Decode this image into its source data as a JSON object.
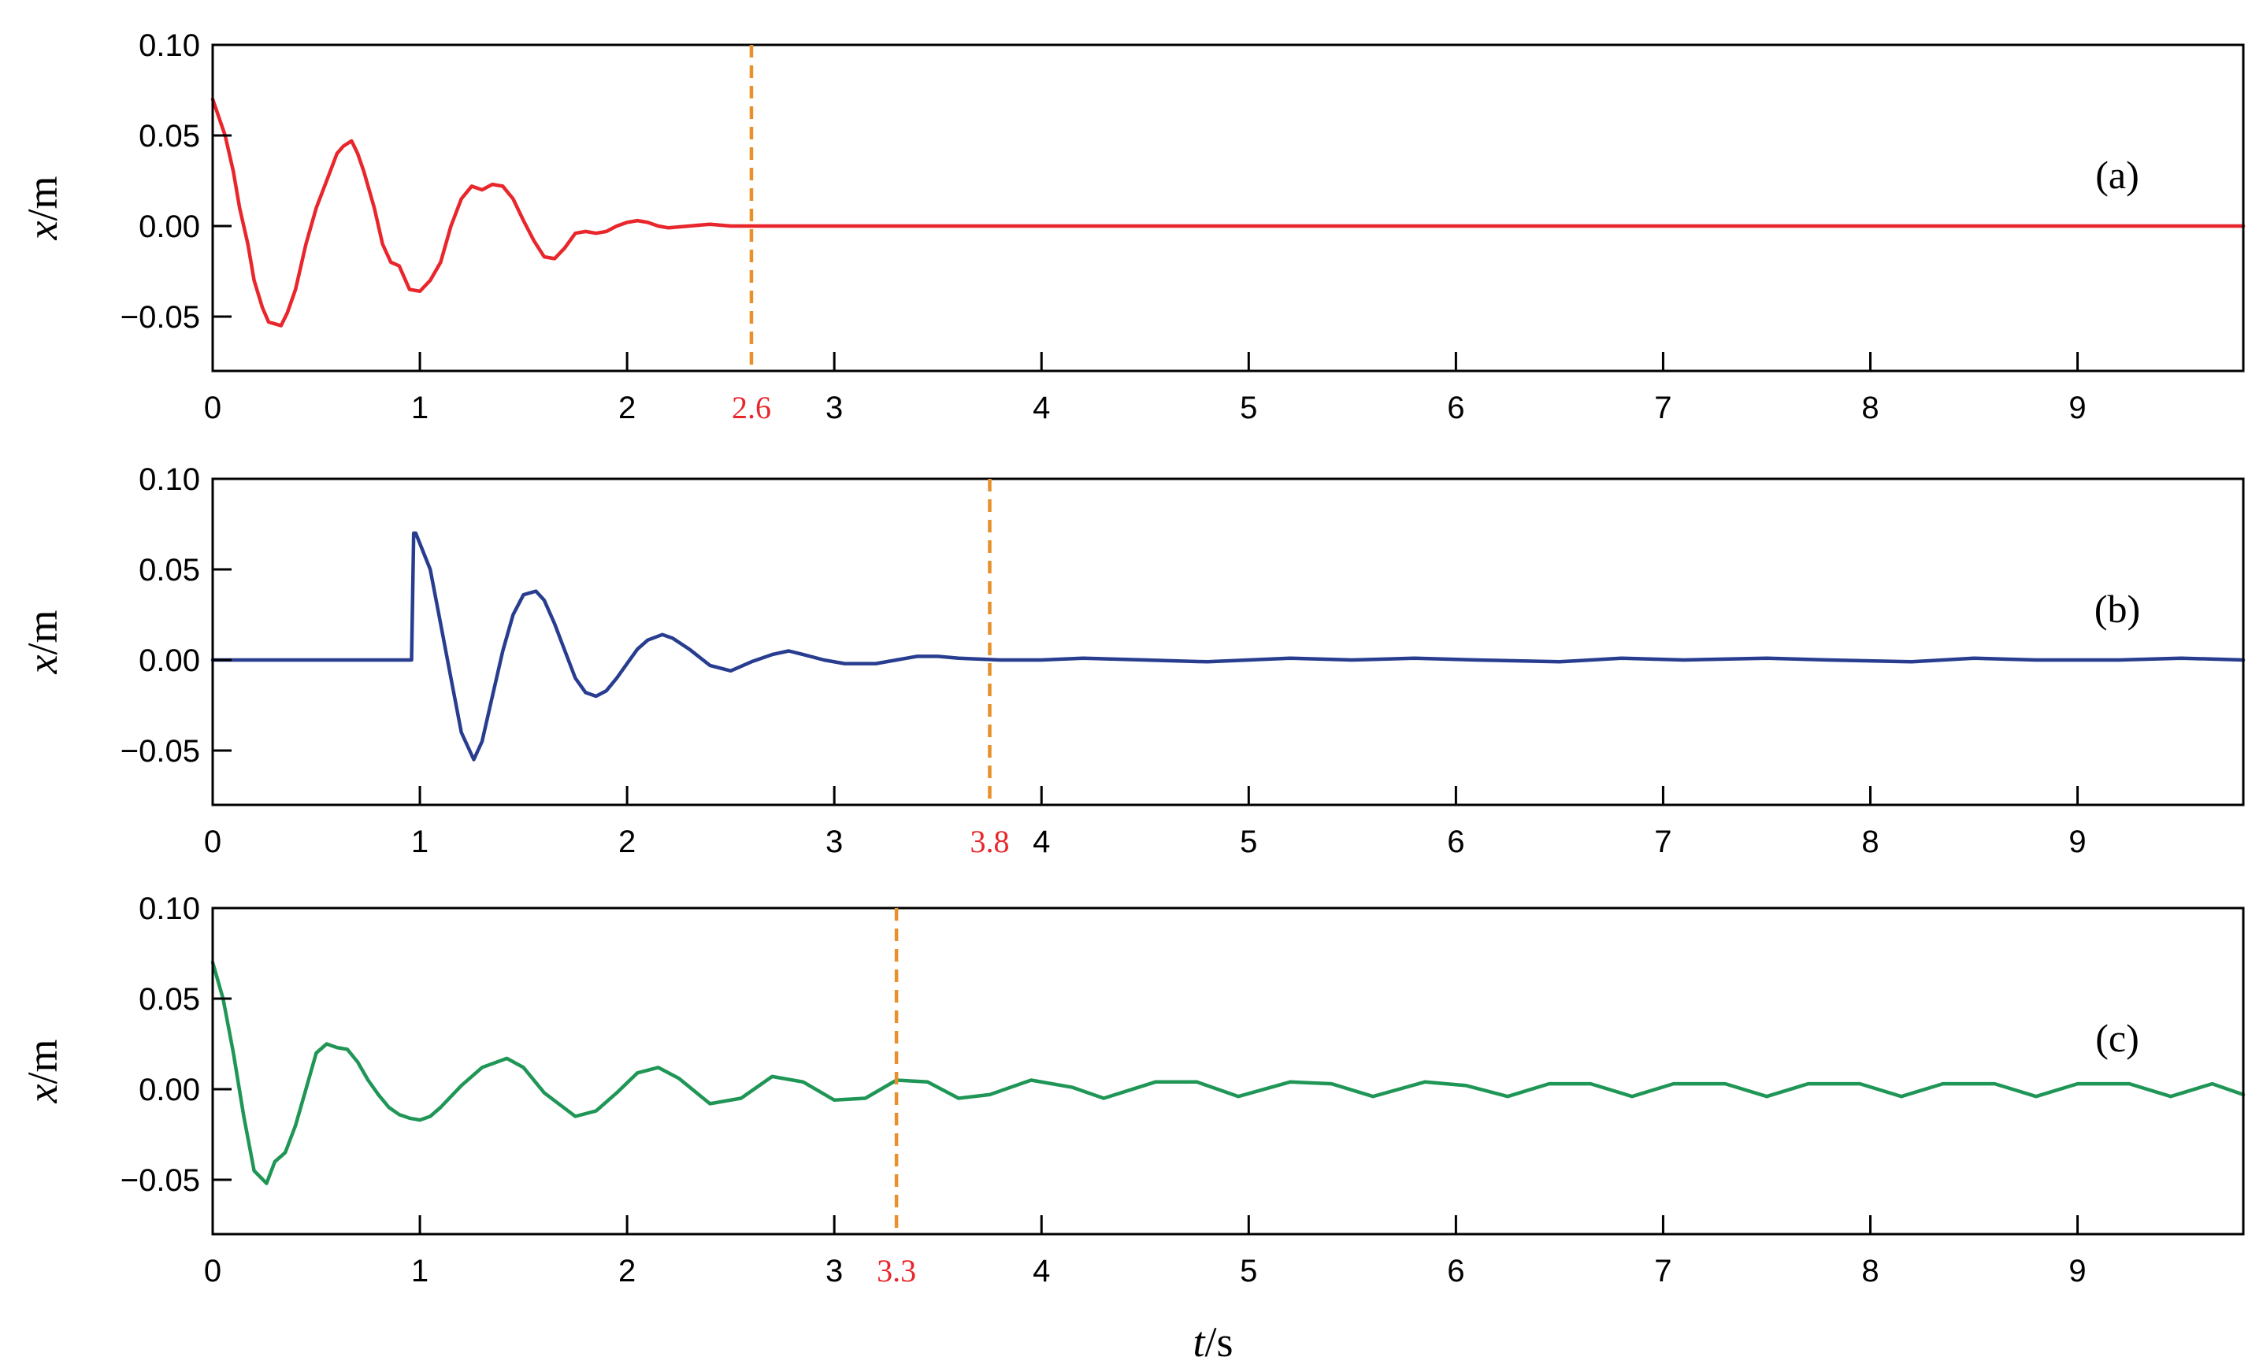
{
  "chart_data": [
    {
      "type": "line",
      "panel_label": "(a)",
      "ylabel": "x/m",
      "xlim": [
        0,
        9.8
      ],
      "ylim": [
        -0.08,
        0.1
      ],
      "xticks": [
        0,
        1,
        2,
        3,
        4,
        5,
        6,
        7,
        8,
        9
      ],
      "yticks": [
        -0.05,
        0.0,
        0.05,
        0.1
      ],
      "ytick_labels": [
        "−0.05",
        "0.00",
        "0.05",
        "0.10"
      ],
      "marker": {
        "x": 2.6,
        "label": "2.6"
      },
      "series": [
        {
          "color": "#e8262b",
          "x": [
            0,
            0.03,
            0.06,
            0.1,
            0.13,
            0.17,
            0.2,
            0.24,
            0.27,
            0.3,
            0.33,
            0.36,
            0.4,
            0.45,
            0.5,
            0.55,
            0.6,
            0.63,
            0.67,
            0.7,
            0.73,
            0.78,
            0.82,
            0.86,
            0.9,
            0.95,
            1.0,
            1.05,
            1.1,
            1.15,
            1.2,
            1.25,
            1.3,
            1.35,
            1.4,
            1.45,
            1.5,
            1.55,
            1.6,
            1.65,
            1.7,
            1.75,
            1.8,
            1.85,
            1.9,
            1.95,
            2.0,
            2.05,
            2.1,
            2.15,
            2.2,
            2.3,
            2.4,
            2.5,
            2.6,
            3.0,
            5.0,
            9.8
          ],
          "y": [
            0.07,
            0.06,
            0.05,
            0.03,
            0.01,
            -0.01,
            -0.03,
            -0.045,
            -0.053,
            -0.054,
            -0.055,
            -0.048,
            -0.035,
            -0.01,
            0.01,
            0.025,
            0.04,
            0.044,
            0.047,
            0.04,
            0.03,
            0.01,
            -0.01,
            -0.02,
            -0.022,
            -0.035,
            -0.036,
            -0.03,
            -0.02,
            0.0,
            0.015,
            0.022,
            0.02,
            0.023,
            0.022,
            0.015,
            0.003,
            -0.008,
            -0.017,
            -0.018,
            -0.012,
            -0.004,
            -0.003,
            -0.004,
            -0.003,
            0.0,
            0.002,
            0.003,
            0.002,
            0.0,
            -0.001,
            0.0,
            0.001,
            0.0,
            0.0,
            0.0,
            0.0,
            0.0
          ]
        }
      ]
    },
    {
      "type": "line",
      "panel_label": "(b)",
      "ylabel": "x/m",
      "xlim": [
        0,
        9.8
      ],
      "ylim": [
        -0.08,
        0.1
      ],
      "xticks": [
        0,
        1,
        2,
        3,
        4,
        5,
        6,
        7,
        8,
        9
      ],
      "yticks": [
        -0.05,
        0.0,
        0.05,
        0.1
      ],
      "ytick_labels": [
        "−0.05",
        "0.00",
        "0.05",
        "0.10"
      ],
      "marker": {
        "x": 3.75,
        "label": "3.8"
      },
      "series": [
        {
          "color": "#283d8f",
          "x": [
            0,
            0.96,
            0.97,
            0.98,
            1.05,
            1.1,
            1.15,
            1.2,
            1.26,
            1.3,
            1.35,
            1.4,
            1.45,
            1.5,
            1.56,
            1.6,
            1.65,
            1.7,
            1.75,
            1.8,
            1.85,
            1.9,
            1.95,
            2.0,
            2.05,
            2.1,
            2.17,
            2.22,
            2.3,
            2.4,
            2.5,
            2.6,
            2.7,
            2.78,
            2.85,
            2.95,
            3.05,
            3.2,
            3.3,
            3.4,
            3.5,
            3.6,
            3.8,
            4.0,
            4.2,
            4.5,
            4.8,
            5.2,
            5.5,
            5.8,
            6.1,
            6.5,
            6.8,
            7.1,
            7.5,
            7.8,
            8.2,
            8.5,
            8.8,
            9.2,
            9.5,
            9.8
          ],
          "y": [
            0.0,
            0.0,
            0.07,
            0.07,
            0.05,
            0.02,
            -0.01,
            -0.04,
            -0.055,
            -0.045,
            -0.02,
            0.005,
            0.025,
            0.036,
            0.038,
            0.033,
            0.02,
            0.005,
            -0.01,
            -0.018,
            -0.02,
            -0.017,
            -0.01,
            -0.002,
            0.006,
            0.011,
            0.014,
            0.012,
            0.006,
            -0.003,
            -0.006,
            -0.001,
            0.003,
            0.005,
            0.003,
            0.0,
            -0.002,
            -0.002,
            0.0,
            0.002,
            0.002,
            0.001,
            0.0,
            0.0,
            0.001,
            0.0,
            -0.001,
            0.001,
            0.0,
            0.001,
            0.0,
            -0.001,
            0.001,
            0.0,
            0.001,
            0.0,
            -0.001,
            0.001,
            0.0,
            0.0,
            0.001,
            0.0
          ]
        }
      ]
    },
    {
      "type": "line",
      "panel_label": "(c)",
      "ylabel": "x/m",
      "xlabel": "t/s",
      "xlim": [
        0,
        9.8
      ],
      "ylim": [
        -0.08,
        0.1
      ],
      "xticks": [
        0,
        1,
        2,
        3,
        4,
        5,
        6,
        7,
        8,
        9
      ],
      "yticks": [
        -0.05,
        0.0,
        0.05,
        0.1
      ],
      "ytick_labels": [
        "−0.05",
        "0.00",
        "0.05",
        "0.10"
      ],
      "marker": {
        "x": 3.3,
        "label": "3.3"
      },
      "series": [
        {
          "color": "#1f9656",
          "x": [
            0,
            0.05,
            0.1,
            0.15,
            0.2,
            0.26,
            0.3,
            0.35,
            0.4,
            0.45,
            0.5,
            0.55,
            0.6,
            0.65,
            0.7,
            0.75,
            0.8,
            0.85,
            0.9,
            0.95,
            1.0,
            1.05,
            1.1,
            1.2,
            1.3,
            1.42,
            1.5,
            1.6,
            1.75,
            1.85,
            1.95,
            2.05,
            2.15,
            2.25,
            2.4,
            2.55,
            2.7,
            2.85,
            3.0,
            3.15,
            3.3,
            3.45,
            3.6,
            3.75,
            3.95,
            4.15,
            4.3,
            4.55,
            4.75,
            4.95,
            5.2,
            5.4,
            5.6,
            5.85,
            6.05,
            6.25,
            6.45,
            6.65,
            6.85,
            7.05,
            7.3,
            7.5,
            7.7,
            7.95,
            8.15,
            8.35,
            8.6,
            8.8,
            9.0,
            9.25,
            9.45,
            9.65,
            9.8
          ],
          "y": [
            0.07,
            0.05,
            0.02,
            -0.015,
            -0.045,
            -0.052,
            -0.04,
            -0.035,
            -0.02,
            0.0,
            0.02,
            0.025,
            0.023,
            0.022,
            0.015,
            0.005,
            -0.003,
            -0.01,
            -0.014,
            -0.016,
            -0.017,
            -0.015,
            -0.01,
            0.002,
            0.012,
            0.017,
            0.012,
            -0.002,
            -0.015,
            -0.012,
            -0.002,
            0.009,
            0.012,
            0.006,
            -0.008,
            -0.005,
            0.007,
            0.004,
            -0.006,
            -0.005,
            0.005,
            0.004,
            -0.005,
            -0.003,
            0.005,
            0.001,
            -0.005,
            0.004,
            0.004,
            -0.004,
            0.004,
            0.003,
            -0.004,
            0.004,
            0.002,
            -0.004,
            0.003,
            0.003,
            -0.004,
            0.003,
            0.003,
            -0.004,
            0.003,
            0.003,
            -0.004,
            0.003,
            0.003,
            -0.004,
            0.003,
            0.003,
            -0.004,
            0.003,
            -0.003
          ]
        }
      ]
    }
  ],
  "marker_color": "#e8912a",
  "marker_label_color": "#e8262b"
}
